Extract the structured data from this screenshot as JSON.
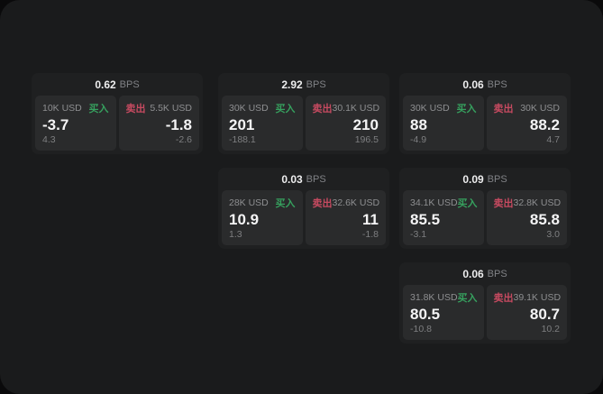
{
  "labels": {
    "bps": "BPS",
    "buy": "买入",
    "sell": "卖出"
  },
  "colors": {
    "backdrop": "#0a0a0b",
    "window_bg": "#1a1b1c",
    "card_bg": "#1f2021",
    "panel_bg": "#2a2b2c",
    "label_gray": "#8e8f91",
    "value_white": "#f4f4f5",
    "buy_green": "#36a05e",
    "sell_red": "#c64a60"
  },
  "cards": [
    {
      "bps": "0.62",
      "buy": {
        "amount": "10K USD",
        "price": "-3.7",
        "sub": "4.3"
      },
      "sell": {
        "amount": "5.5K USD",
        "price": "-1.8",
        "sub": "-2.6"
      }
    },
    {
      "bps": "2.92",
      "buy": {
        "amount": "30K USD",
        "price": "201",
        "sub": "-188.1"
      },
      "sell": {
        "amount": "30.1K USD",
        "price": "210",
        "sub": "196.5"
      }
    },
    {
      "bps": "0.06",
      "buy": {
        "amount": "30K USD",
        "price": "88",
        "sub": "-4.9"
      },
      "sell": {
        "amount": "30K USD",
        "price": "88.2",
        "sub": "4.7"
      }
    },
    {
      "bps": "0.03",
      "buy": {
        "amount": "28K USD",
        "price": "10.9",
        "sub": "1.3"
      },
      "sell": {
        "amount": "32.6K USD",
        "price": "11",
        "sub": "-1.8"
      }
    },
    {
      "bps": "0.09",
      "buy": {
        "amount": "34.1K USD",
        "price": "85.5",
        "sub": "-3.1"
      },
      "sell": {
        "amount": "32.8K USD",
        "price": "85.8",
        "sub": "3.0"
      }
    },
    {
      "bps": "0.06",
      "buy": {
        "amount": "31.8K USD",
        "price": "80.5",
        "sub": "-10.8"
      },
      "sell": {
        "amount": "39.1K USD",
        "price": "80.7",
        "sub": "10.2"
      }
    }
  ]
}
